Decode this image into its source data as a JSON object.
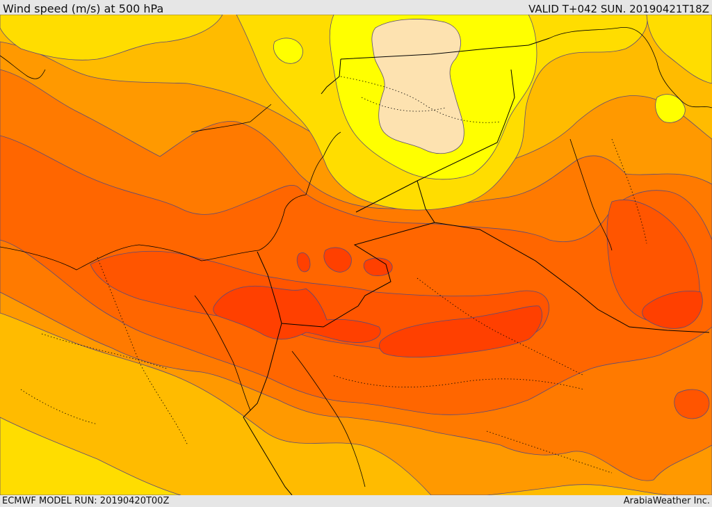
{
  "header": {
    "title": "Wind speed (m/s) at 500 hPa",
    "valid": "VALID T+042 SUN. 20190421T18Z"
  },
  "footer": {
    "model_run": "ECMWF MODEL RUN: 20190420T00Z",
    "credit": "ArabiaWeather Inc."
  },
  "colors": {
    "band_5": "#fde2b0",
    "band_10": "#ffff00",
    "band_15": "#ffdd00",
    "band_20": "#ffbb00",
    "band_25": "#ff9900",
    "band_30": "#ff7a00",
    "band_35": "#ff6600",
    "band_40": "#ff5500",
    "band_45": "#ff4000",
    "contour_line": "#5a4a7a",
    "border_line": "#000000"
  }
}
